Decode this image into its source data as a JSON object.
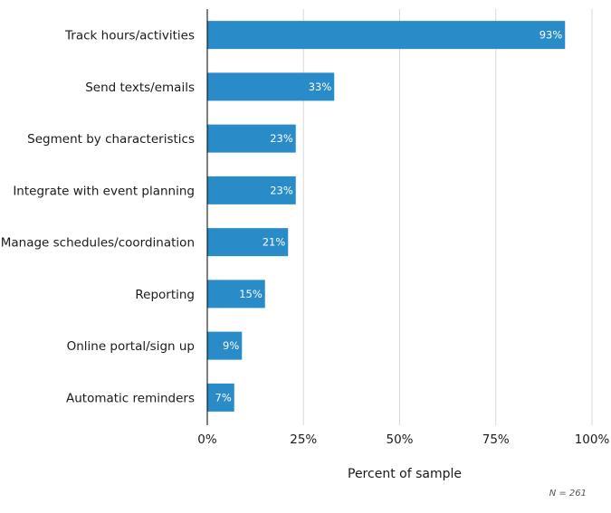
{
  "chart_data": {
    "type": "bar",
    "orientation": "horizontal",
    "categories": [
      "Track hours/activities",
      "Send texts/emails",
      "Segment by characteristics",
      "Integrate with event planning",
      "Manage schedules/coordination",
      "Reporting",
      "Online portal/sign up",
      "Automatic reminders"
    ],
    "values": [
      93,
      33,
      23,
      23,
      21,
      15,
      9,
      7
    ],
    "value_labels": [
      "93%",
      "33%",
      "23%",
      "23%",
      "21%",
      "15%",
      "9%",
      "7%"
    ],
    "xlabel": "Percent of sample",
    "xlim": [
      0,
      100
    ],
    "xticks": [
      0,
      25,
      50,
      75,
      100
    ],
    "xtick_labels": [
      "0%",
      "25%",
      "50%",
      "75%",
      "100%"
    ],
    "grid": true,
    "bar_color": "#2a8bc9",
    "note": "N = 261"
  }
}
